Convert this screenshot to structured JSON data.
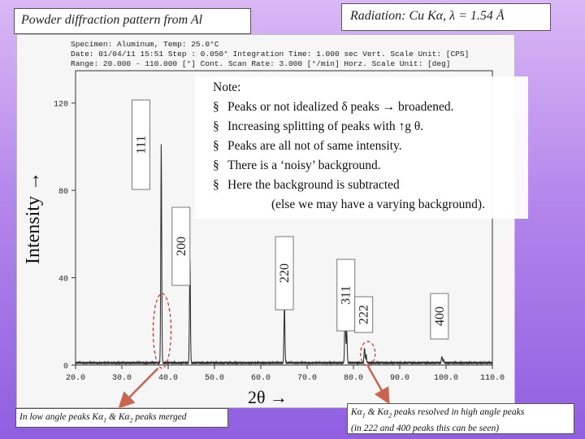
{
  "title": "Powder diffraction pattern from Al",
  "radiation": "Radiation: Cu Kα, λ = 1.54 Å",
  "instrument_header": [
    "Specimen: Aluminum, Temp: 25.0°C",
    "Date: 01/04/11 15:51  Step : 0.050°  Integration Time: 1.000 sec  Vert. Scale Unit: [CPS]",
    "Range: 20.000 - 110.000 [°]  Cont. Scan Rate: 3.000 [°/min]  Horz. Scale Unit: [deg]"
  ],
  "note": {
    "heading": "Note:",
    "bullets": [
      "Peaks or not idealized δ peaks → broadened.",
      "Increasing splitting of peaks with ↑g θ.",
      "Peaks are all not of same intensity.",
      "There is a ‘noisy’ background.",
      "Here the background is subtracted"
    ],
    "continuation": "(else we may have a varying background).",
    "bullet_symbol": "§"
  },
  "y_axis_label": "Intensity →",
  "x_axis_label": "2θ →",
  "caption_left": {
    "prefix": "In low angle peaks Kα",
    "sub1": "1",
    "middle": " & Kα",
    "sub2": "2",
    "suffix": " peaks merged"
  },
  "caption_right": {
    "prefix": "Kα",
    "sub1": "1",
    "middle": " & Kα",
    "sub2": "2",
    "suffix": " peaks resolved in high angle peaks",
    "line2": "(in 222 and 400 peaks this can be seen)"
  },
  "colors": {
    "annotation_red": "#d03020",
    "annotation_arrow": "#c86450",
    "pattern_line": "#333333"
  },
  "chart_data": {
    "type": "line",
    "xlabel": "2θ →",
    "ylabel": "Intensity →",
    "xlim": [
      20,
      110
    ],
    "ylim": [
      0,
      140
    ],
    "x_ticks": [
      20.0,
      30.0,
      40.0,
      50.0,
      60.0,
      70.0,
      80.0,
      90.0,
      100.0,
      110.0
    ],
    "x_tick_labels": [
      "20.0",
      "30.0",
      "40.0",
      "50.0",
      "60.0",
      "70.0",
      "80.0",
      "90.0",
      "100.0",
      "110.0"
    ],
    "y_ticks": [
      0,
      40,
      80,
      120
    ],
    "y_tick_labels": [
      "0",
      "40",
      "80",
      "120"
    ],
    "peaks": [
      {
        "hkl": "111",
        "two_theta": 38.5,
        "intensity": 100
      },
      {
        "hkl": "200",
        "two_theta": 44.7,
        "intensity": 47
      },
      {
        "hkl": "220",
        "two_theta": 65.1,
        "intensity": 27
      },
      {
        "hkl": "311",
        "two_theta": 78.2,
        "intensity": 29
      },
      {
        "hkl": "222",
        "two_theta": 82.4,
        "intensity": 7
      },
      {
        "hkl": "400",
        "two_theta": 99.1,
        "intensity": 3
      }
    ],
    "background_level": 1
  }
}
